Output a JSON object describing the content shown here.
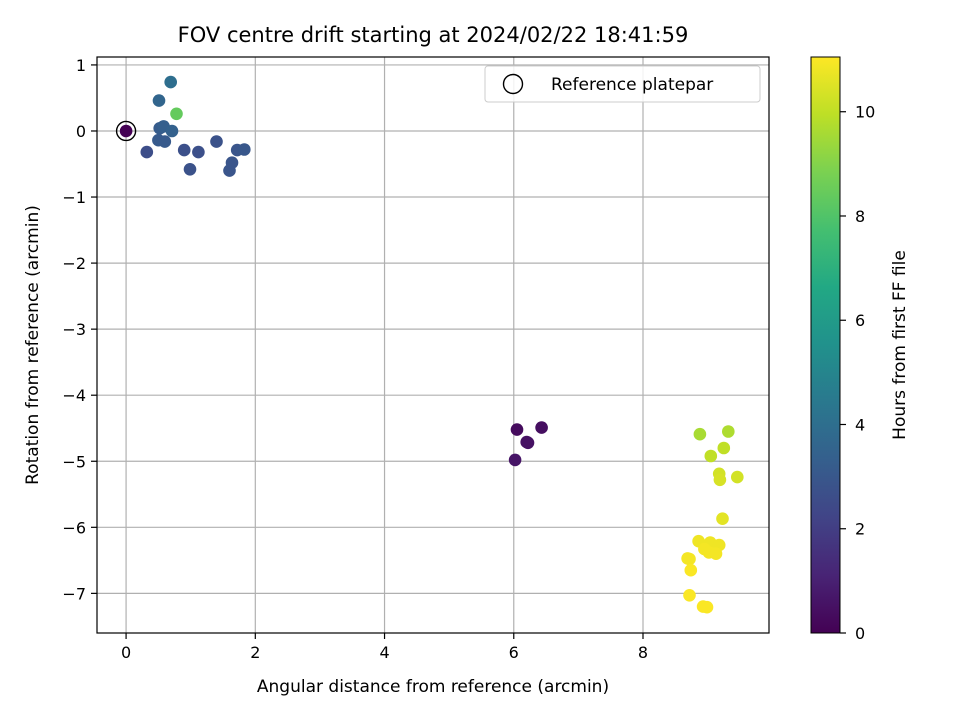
{
  "chart_data": {
    "type": "scatter",
    "title": "FOV centre drift starting at 2024/02/22 18:41:59",
    "xlabel": "Angular distance from reference (arcmin)",
    "ylabel": "Rotation from reference (arcmin)",
    "xlim": [
      -0.45,
      9.95
    ],
    "ylim": [
      -7.6,
      1.12
    ],
    "xticks": [
      0,
      2,
      4,
      6,
      8
    ],
    "xtick_labels": [
      "0",
      "2",
      "4",
      "6",
      "8"
    ],
    "yticks": [
      1,
      0,
      -1,
      -2,
      -3,
      -4,
      -5,
      -6,
      -7
    ],
    "ytick_labels": [
      "1",
      "0",
      "−1",
      "−2",
      "−3",
      "−4",
      "−5",
      "−6",
      "−7"
    ],
    "grid": true,
    "legend": {
      "placement": "top-right",
      "entries": [
        "Reference platepar"
      ]
    },
    "colorbar": {
      "label": "Hours from first FF file",
      "range": [
        0,
        11.05
      ],
      "ticks": [
        0,
        2,
        4,
        6,
        8,
        10
      ],
      "tick_labels": [
        "0",
        "2",
        "4",
        "6",
        "8",
        "10"
      ],
      "colormap": "viridis"
    },
    "reference_point": {
      "x": 0,
      "y": 0
    },
    "points": [
      {
        "x": 0.0,
        "y": 0.0,
        "c": 0.0
      },
      {
        "x": 6.05,
        "y": -4.52,
        "c": 0.3
      },
      {
        "x": 6.43,
        "y": -4.49,
        "c": 0.4
      },
      {
        "x": 6.22,
        "y": -4.72,
        "c": 0.5
      },
      {
        "x": 6.2,
        "y": -4.71,
        "c": 0.5
      },
      {
        "x": 6.02,
        "y": -4.98,
        "c": 0.6
      },
      {
        "x": 0.32,
        "y": -0.32,
        "c": 2.6
      },
      {
        "x": 0.9,
        "y": -0.29,
        "c": 2.7
      },
      {
        "x": 1.12,
        "y": -0.32,
        "c": 2.7
      },
      {
        "x": 0.99,
        "y": -0.58,
        "c": 2.8
      },
      {
        "x": 1.4,
        "y": -0.16,
        "c": 2.8
      },
      {
        "x": 1.6,
        "y": -0.6,
        "c": 2.9
      },
      {
        "x": 1.64,
        "y": -0.48,
        "c": 2.9
      },
      {
        "x": 1.72,
        "y": -0.29,
        "c": 2.9
      },
      {
        "x": 1.83,
        "y": -0.28,
        "c": 3.0
      },
      {
        "x": 0.5,
        "y": -0.14,
        "c": 3.1
      },
      {
        "x": 0.6,
        "y": -0.16,
        "c": 3.1
      },
      {
        "x": 0.52,
        "y": 0.04,
        "c": 3.2
      },
      {
        "x": 0.58,
        "y": 0.07,
        "c": 3.3
      },
      {
        "x": 0.71,
        "y": 0.0,
        "c": 3.4
      },
      {
        "x": 0.51,
        "y": 0.46,
        "c": 3.6
      },
      {
        "x": 0.69,
        "y": 0.74,
        "c": 4.0
      },
      {
        "x": 0.78,
        "y": 0.26,
        "c": 8.4
      },
      {
        "x": 8.88,
        "y": -4.59,
        "c": 9.6
      },
      {
        "x": 9.32,
        "y": -4.55,
        "c": 9.7
      },
      {
        "x": 9.05,
        "y": -4.92,
        "c": 10.0
      },
      {
        "x": 9.25,
        "y": -4.8,
        "c": 10.0
      },
      {
        "x": 9.18,
        "y": -5.19,
        "c": 10.3
      },
      {
        "x": 9.46,
        "y": -5.24,
        "c": 10.3
      },
      {
        "x": 9.19,
        "y": -5.28,
        "c": 10.4
      },
      {
        "x": 9.23,
        "y": -5.87,
        "c": 10.6
      },
      {
        "x": 8.86,
        "y": -6.21,
        "c": 10.8
      },
      {
        "x": 9.04,
        "y": -6.23,
        "c": 10.8
      },
      {
        "x": 9.18,
        "y": -6.27,
        "c": 10.8
      },
      {
        "x": 8.95,
        "y": -6.33,
        "c": 10.9
      },
      {
        "x": 9.02,
        "y": -6.38,
        "c": 10.9
      },
      {
        "x": 9.13,
        "y": -6.4,
        "c": 10.9
      },
      {
        "x": 8.72,
        "y": -6.48,
        "c": 10.9
      },
      {
        "x": 8.69,
        "y": -6.47,
        "c": 10.9
      },
      {
        "x": 8.74,
        "y": -6.65,
        "c": 11.0
      },
      {
        "x": 8.72,
        "y": -7.03,
        "c": 11.0
      },
      {
        "x": 8.93,
        "y": -7.2,
        "c": 11.0
      },
      {
        "x": 8.99,
        "y": -7.21,
        "c": 11.0
      }
    ]
  }
}
